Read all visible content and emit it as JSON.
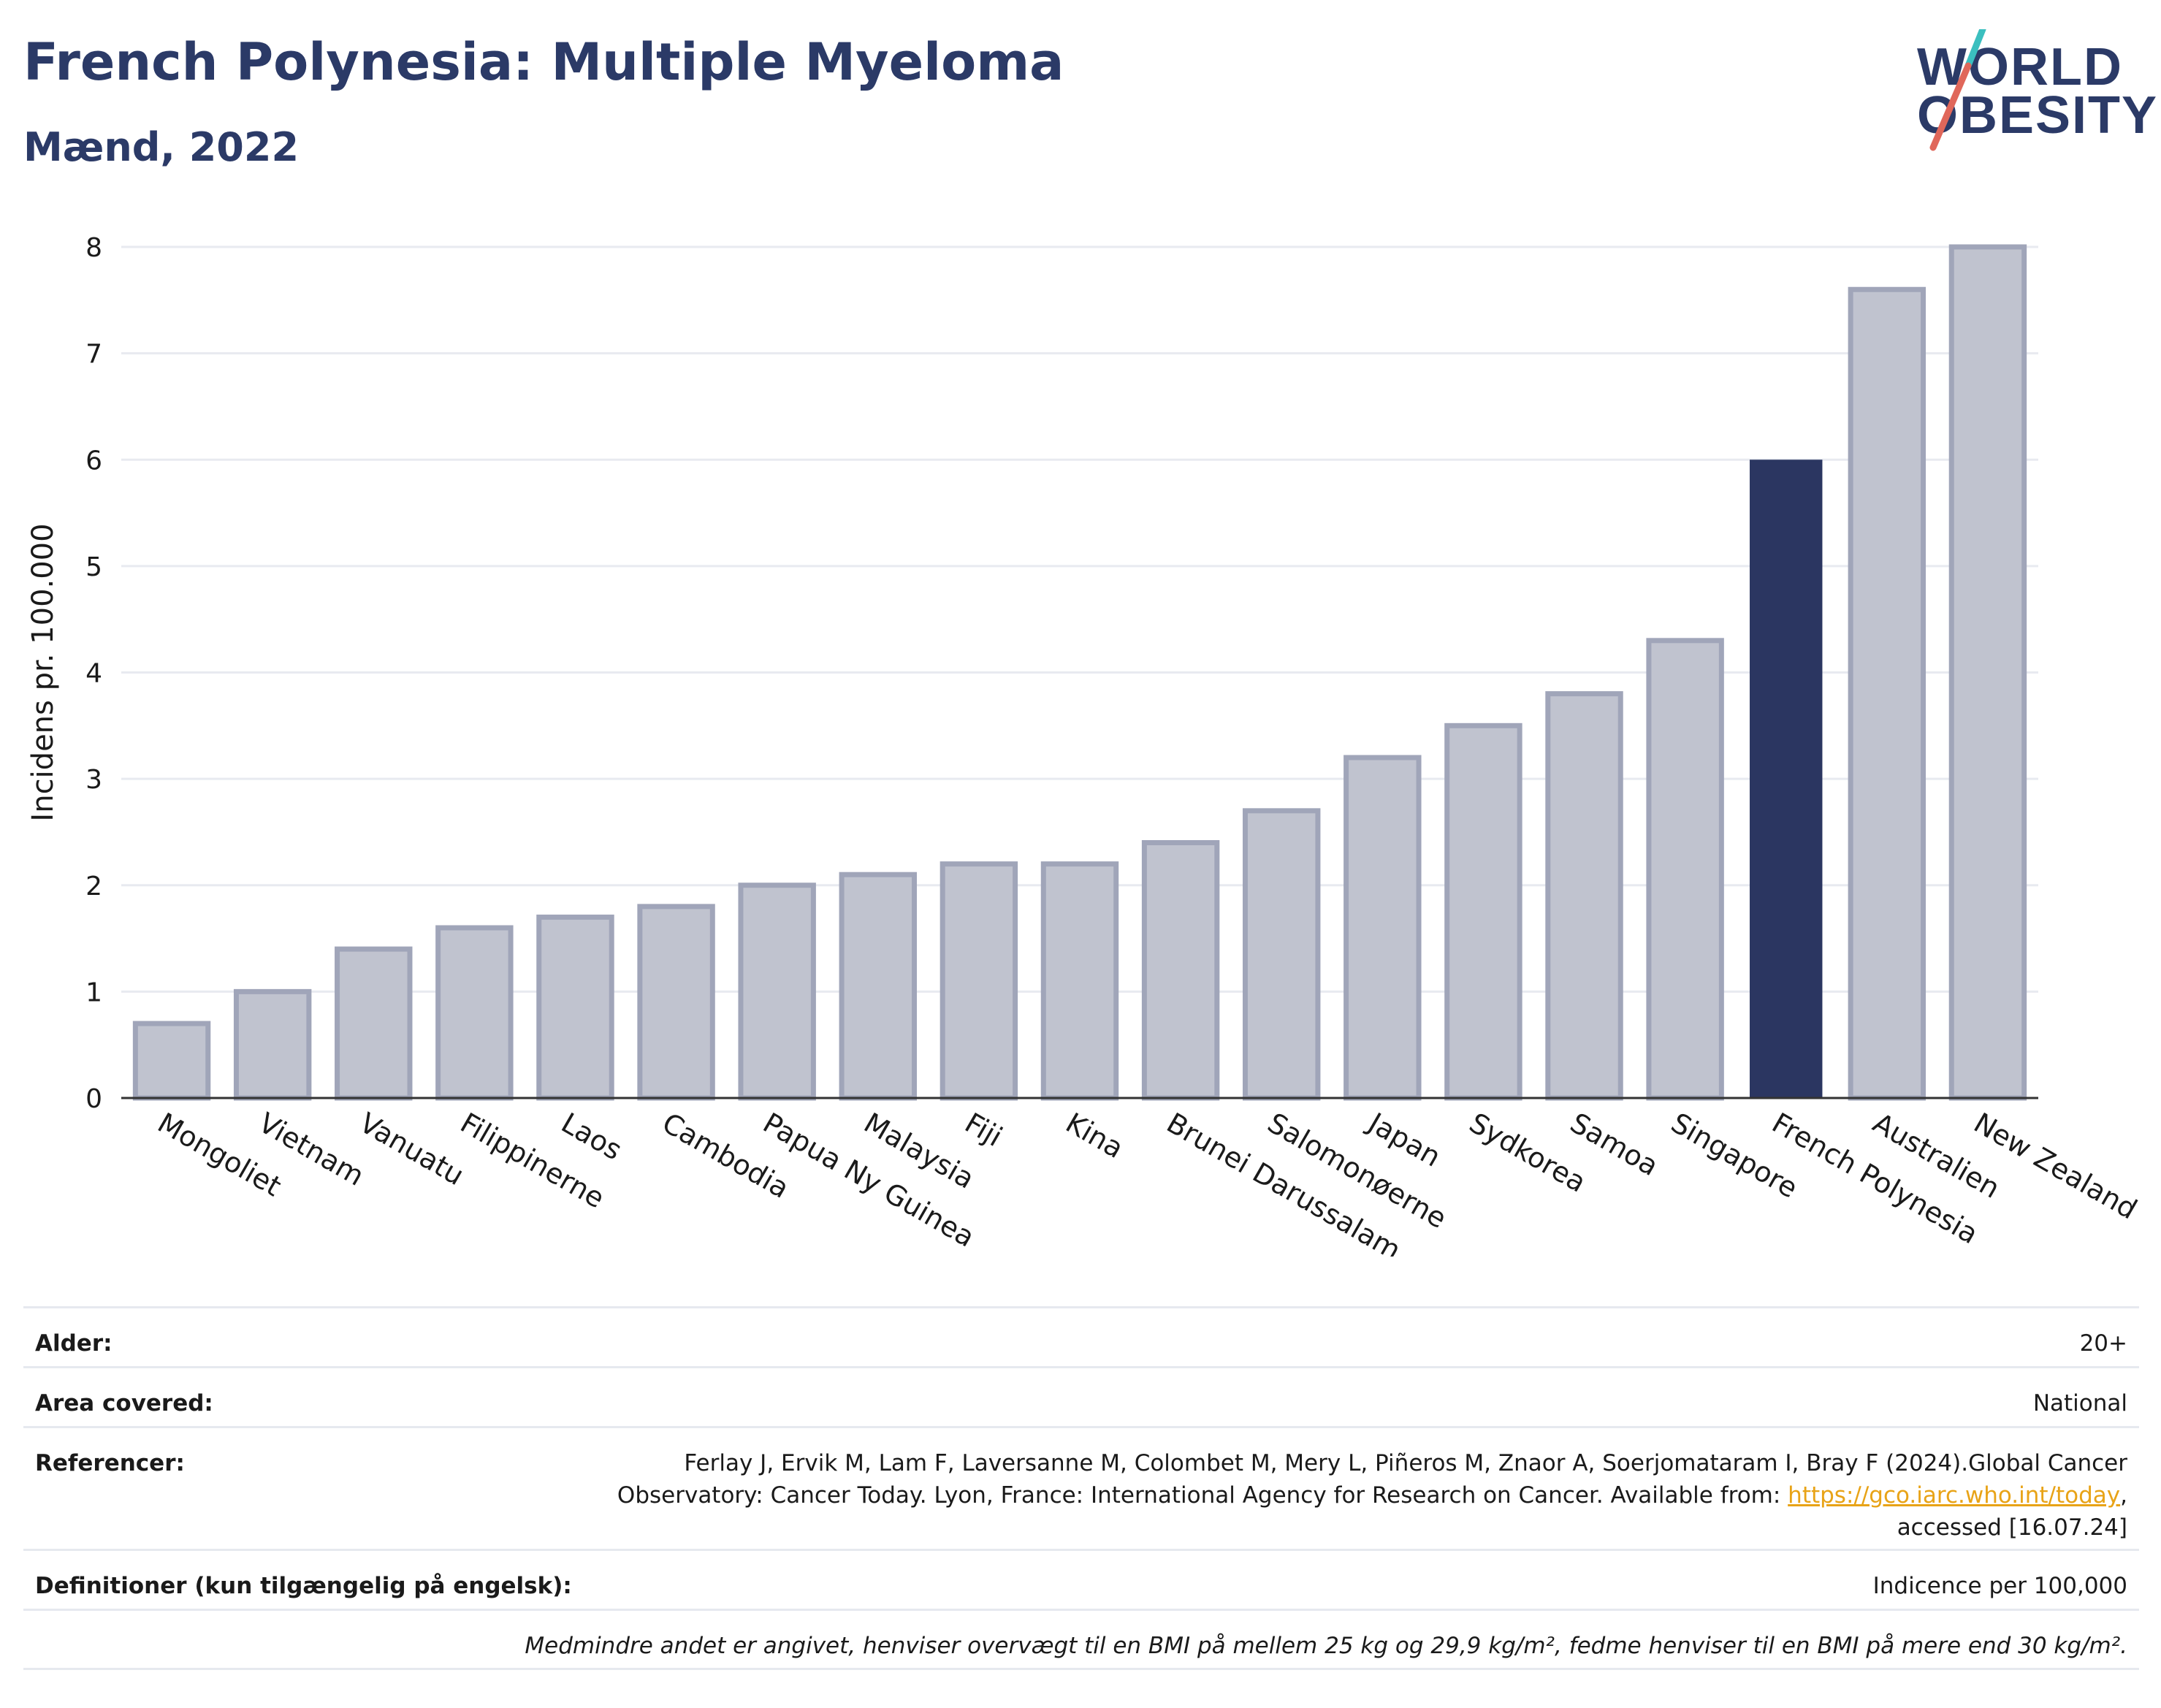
{
  "header": {
    "title": "French Polynesia: Multiple Myeloma",
    "subtitle": "Mænd, 2022"
  },
  "logo": {
    "line1": "WORLD",
    "line2": "OBESITY"
  },
  "colors": {
    "highlight": "#2b3661",
    "bar": "#c0c3cf",
    "bar_border": "#a0a5b9",
    "grid": "#e8eaf0",
    "title": "#2b3a67",
    "logo_slash_top": "#3bbfbf",
    "logo_slash_bottom": "#e0675a"
  },
  "chart_data": {
    "type": "bar",
    "title": "French Polynesia: Multiple Myeloma",
    "subtitle": "Mænd, 2022",
    "xlabel": "",
    "ylabel": "Incidens pr. 100.000",
    "ylim": [
      0,
      8
    ],
    "yticks": [
      0,
      1,
      2,
      3,
      4,
      5,
      6,
      7,
      8
    ],
    "grid": true,
    "highlight": "French Polynesia",
    "categories": [
      "Mongoliet",
      "Vietnam",
      "Vanuatu",
      "Filippinerne",
      "Laos",
      "Cambodia",
      "Papua Ny Guinea",
      "Malaysia",
      "Fiji",
      "Kina",
      "Brunei Darussalam",
      "Salomonøerne",
      "Japan",
      "Sydkorea",
      "Samoa",
      "Singapore",
      "French Polynesia",
      "Australien",
      "New Zealand"
    ],
    "values": [
      0.7,
      1.0,
      1.4,
      1.6,
      1.7,
      1.8,
      2.0,
      2.1,
      2.2,
      2.2,
      2.4,
      2.7,
      3.2,
      3.5,
      3.8,
      4.3,
      6.0,
      7.6,
      8.0
    ]
  },
  "info": {
    "age_label": "Alder:",
    "age_value": "20+",
    "area_label": "Area covered:",
    "area_value": "National",
    "ref_label": "Referencer:",
    "ref_text_1": "Ferlay J, Ervik M, Lam F, Laversanne M, Colombet M, Mery L, Piñeros M, Znaor A, Soerjomataram I, Bray F (2024).Global Cancer",
    "ref_text_2": "Observatory: Cancer Today. Lyon, France: International Agency for Research on Cancer. Available from: ",
    "ref_link": "https://gco.iarc.who.int/today",
    "ref_text_3": ",",
    "ref_text_4": "accessed [16.07.24]",
    "def_label": "Definitioner (kun tilgængelig på engelsk):",
    "def_value": "Indicence per 100,000",
    "note": "Medmindre andet er angivet, henviser overvægt til en BMI på mellem 25 kg og 29,9 kg/m², fedme henviser til en BMI på mere end 30 kg/m²."
  }
}
